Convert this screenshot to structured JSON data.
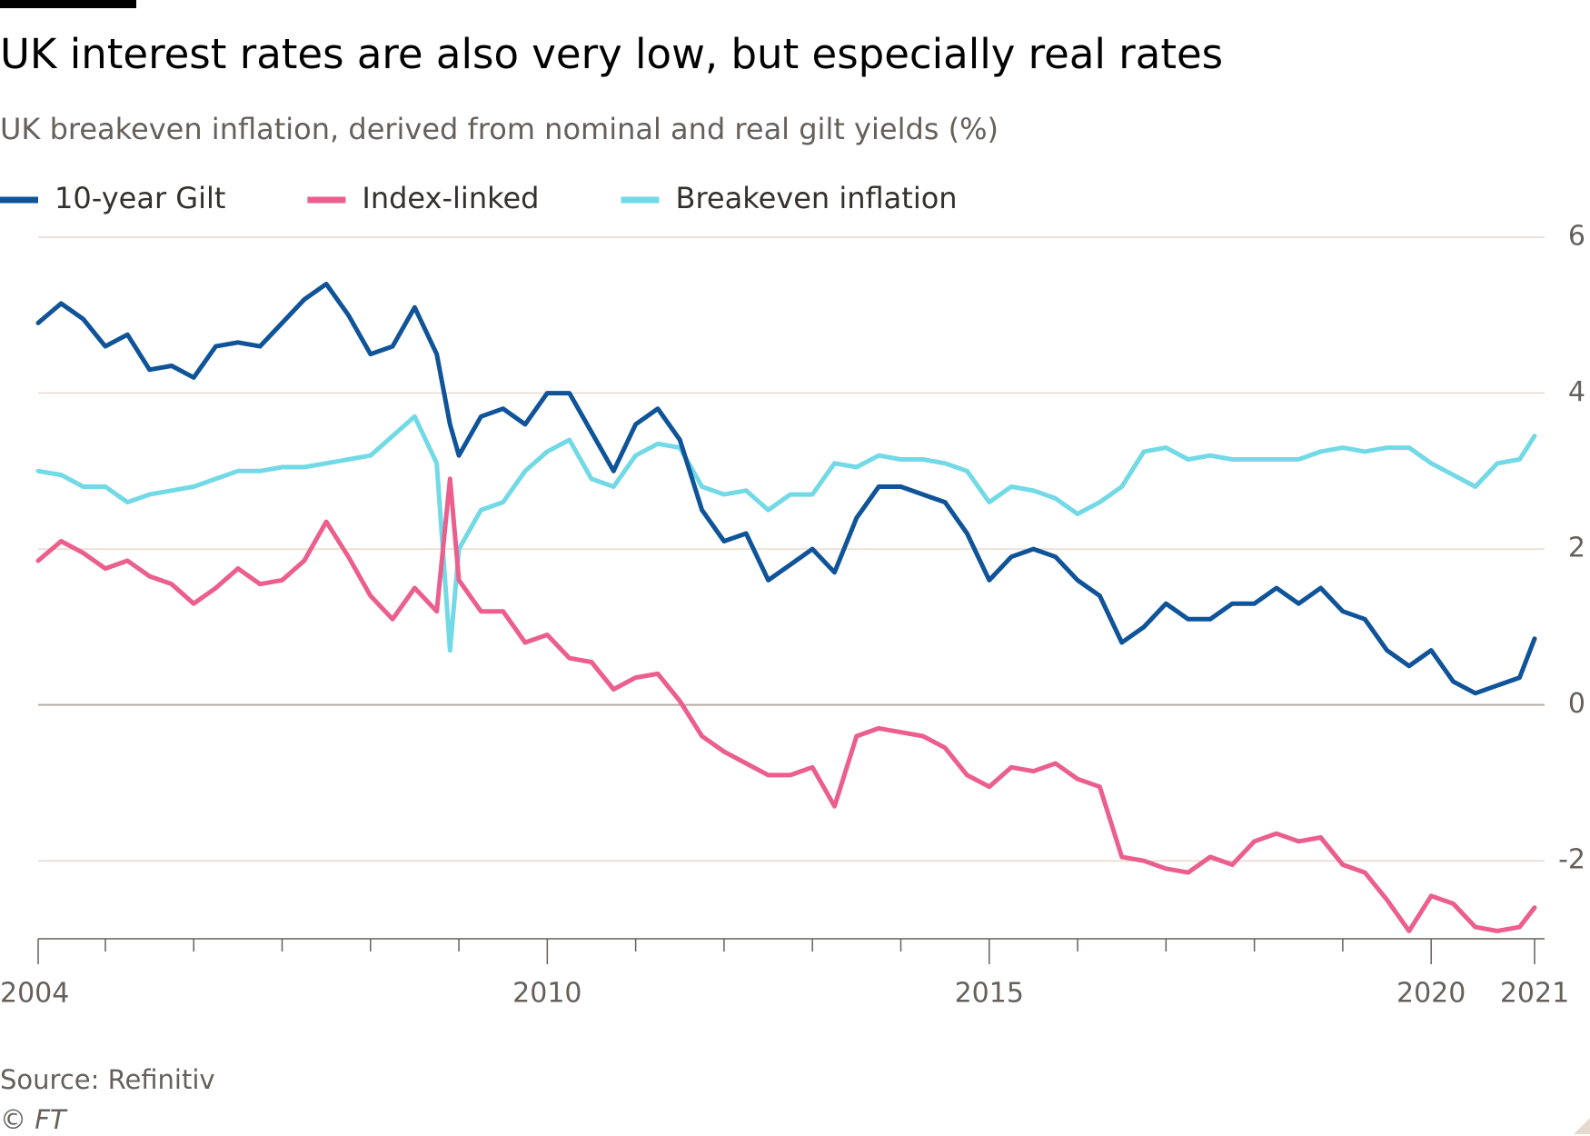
{
  "chart_data": {
    "type": "line",
    "title": "UK interest rates are also very low, but especially real rates",
    "subtitle": "UK breakeven inflation, derived from nominal and real gilt yields (%)",
    "source": "Source: Refinitiv",
    "credit": "© FT",
    "x": [
      2004.24,
      2004.5,
      2004.75,
      2005.0,
      2005.25,
      2005.5,
      2005.75,
      2006.0,
      2006.25,
      2006.5,
      2006.75,
      2007.0,
      2007.25,
      2007.5,
      2007.75,
      2008.0,
      2008.25,
      2008.5,
      2008.75,
      2008.9,
      2009.0,
      2009.25,
      2009.5,
      2009.75,
      2010.0,
      2010.25,
      2010.5,
      2010.75,
      2011.0,
      2011.25,
      2011.5,
      2011.75,
      2012.0,
      2012.25,
      2012.5,
      2012.75,
      2013.0,
      2013.25,
      2013.5,
      2013.75,
      2014.0,
      2014.25,
      2014.5,
      2014.75,
      2015.0,
      2015.25,
      2015.5,
      2015.75,
      2016.0,
      2016.25,
      2016.5,
      2016.75,
      2017.0,
      2017.25,
      2017.5,
      2017.75,
      2018.0,
      2018.25,
      2018.5,
      2018.75,
      2019.0,
      2019.25,
      2019.5,
      2019.75,
      2020.0,
      2020.25,
      2020.5,
      2020.75,
      2021.0,
      2021.17
    ],
    "series": [
      {
        "name": "10-year Gilt",
        "color": "#0f5499",
        "values": [
          4.9,
          5.15,
          4.95,
          4.6,
          4.75,
          4.3,
          4.35,
          4.2,
          4.6,
          4.65,
          4.6,
          4.9,
          5.2,
          5.4,
          5.0,
          4.5,
          4.6,
          5.1,
          4.5,
          3.6,
          3.2,
          3.7,
          3.8,
          3.6,
          4.0,
          4.0,
          3.5,
          3.0,
          3.6,
          3.8,
          3.4,
          2.5,
          2.1,
          2.2,
          1.6,
          1.8,
          2.0,
          1.7,
          2.4,
          2.8,
          2.8,
          2.7,
          2.6,
          2.2,
          1.6,
          1.9,
          2.0,
          1.9,
          1.6,
          1.4,
          0.8,
          1.0,
          1.3,
          1.1,
          1.1,
          1.3,
          1.3,
          1.5,
          1.3,
          1.5,
          1.2,
          1.1,
          0.7,
          0.5,
          0.7,
          0.3,
          0.15,
          0.25,
          0.35,
          0.85
        ]
      },
      {
        "name": "Index-linked",
        "color": "#eb5e8d",
        "values": [
          1.85,
          2.1,
          1.95,
          1.75,
          1.85,
          1.65,
          1.55,
          1.3,
          1.5,
          1.75,
          1.55,
          1.6,
          1.85,
          2.35,
          1.9,
          1.4,
          1.1,
          1.5,
          1.2,
          2.9,
          1.6,
          1.2,
          1.2,
          0.8,
          0.9,
          0.6,
          0.55,
          0.2,
          0.35,
          0.4,
          0.05,
          -0.4,
          -0.6,
          -0.75,
          -0.9,
          -0.9,
          -0.8,
          -1.3,
          -0.4,
          -0.3,
          -0.35,
          -0.4,
          -0.55,
          -0.9,
          -1.05,
          -0.8,
          -0.85,
          -0.75,
          -0.95,
          -1.05,
          -1.95,
          -2.0,
          -2.1,
          -2.15,
          -1.95,
          -2.05,
          -1.75,
          -1.65,
          -1.75,
          -1.7,
          -2.05,
          -2.15,
          -2.5,
          -2.9,
          -2.45,
          -2.55,
          -2.85,
          -2.9,
          -2.85,
          -2.6
        ]
      },
      {
        "name": "Breakeven inflation",
        "color": "#72d9e6",
        "values": [
          3.0,
          2.95,
          2.8,
          2.8,
          2.6,
          2.7,
          2.75,
          2.8,
          2.9,
          3.0,
          3.0,
          3.05,
          3.05,
          3.1,
          3.15,
          3.2,
          3.45,
          3.7,
          3.1,
          0.7,
          2.0,
          2.5,
          2.6,
          3.0,
          3.25,
          3.4,
          2.9,
          2.8,
          3.2,
          3.35,
          3.3,
          2.8,
          2.7,
          2.75,
          2.5,
          2.7,
          2.7,
          3.1,
          3.05,
          3.2,
          3.15,
          3.15,
          3.1,
          3.0,
          2.6,
          2.8,
          2.75,
          2.65,
          2.45,
          2.6,
          2.8,
          3.25,
          3.3,
          3.15,
          3.2,
          3.15,
          3.15,
          3.15,
          3.15,
          3.25,
          3.3,
          3.25,
          3.3,
          3.3,
          3.1,
          2.95,
          2.8,
          3.1,
          3.15,
          3.45
        ]
      }
    ],
    "xlim": [
      2004.24,
      2021.17
    ],
    "xticks": [
      {
        "value": 2004.24,
        "label": "2004"
      },
      2010,
      2015,
      2020,
      {
        "value": 2021.17,
        "label": "2021"
      }
    ],
    "xminorticks": [
      2005,
      2006,
      2007,
      2008,
      2009,
      2011,
      2012,
      2013,
      2014,
      2016,
      2017,
      2018,
      2019
    ],
    "ylim": [
      -3,
      6
    ],
    "yticks": [
      -2,
      0,
      2,
      4,
      6
    ],
    "grid": true
  }
}
